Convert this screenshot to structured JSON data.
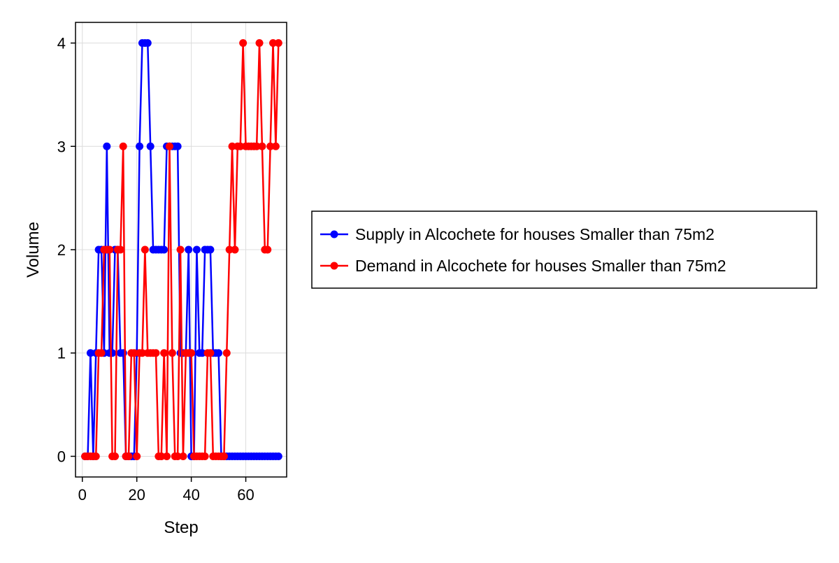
{
  "chart_data": {
    "type": "line",
    "title": "",
    "xlabel": "Step",
    "ylabel": "Volume",
    "xlim": [
      -2.5,
      75
    ],
    "ylim": [
      -0.2,
      4.2
    ],
    "xticks": [
      0,
      20,
      40,
      60
    ],
    "yticks": [
      0,
      1,
      2,
      3,
      4
    ],
    "grid": true,
    "legend_position": "right",
    "x": [
      1,
      2,
      3,
      4,
      5,
      6,
      7,
      8,
      9,
      10,
      11,
      12,
      13,
      14,
      15,
      16,
      17,
      18,
      19,
      20,
      21,
      22,
      23,
      24,
      25,
      26,
      27,
      28,
      29,
      30,
      31,
      32,
      33,
      34,
      35,
      36,
      37,
      38,
      39,
      40,
      41,
      42,
      43,
      44,
      45,
      46,
      47,
      48,
      49,
      50,
      51,
      52,
      53,
      54,
      55,
      56,
      57,
      58,
      59,
      60,
      61,
      62,
      63,
      64,
      65,
      66,
      67,
      68,
      69,
      70,
      71,
      72
    ],
    "series": [
      {
        "name": "Supply in Alcochete for houses Smaller than 75m2",
        "color": "#0000ff",
        "values": [
          0,
          0,
          1,
          0,
          1,
          2,
          2,
          1,
          3,
          1,
          1,
          2,
          2,
          1,
          1,
          0,
          0,
          0,
          0,
          1,
          3,
          4,
          4,
          4,
          3,
          2,
          2,
          2,
          2,
          2,
          3,
          3,
          3,
          3,
          3,
          1,
          1,
          1,
          2,
          0,
          0,
          2,
          1,
          1,
          2,
          2,
          2,
          1,
          1,
          1,
          0,
          0,
          0,
          0,
          0,
          0,
          0,
          0,
          0,
          0,
          0,
          0,
          0,
          0,
          0,
          0,
          0,
          0,
          0,
          0,
          0,
          0
        ]
      },
      {
        "name": "Demand in Alcochete for houses Smaller than 75m2",
        "color": "#ff0000",
        "values": [
          0,
          0,
          0,
          0,
          0,
          1,
          1,
          2,
          2,
          2,
          0,
          0,
          2,
          2,
          3,
          0,
          0,
          1,
          1,
          0,
          1,
          1,
          2,
          1,
          1,
          1,
          1,
          0,
          0,
          1,
          0,
          3,
          1,
          0,
          0,
          2,
          0,
          1,
          1,
          1,
          0,
          0,
          0,
          0,
          0,
          1,
          1,
          0,
          0,
          0,
          0,
          0,
          1,
          2,
          3,
          2,
          3,
          3,
          4,
          3,
          3,
          3,
          3,
          3,
          4,
          3,
          2,
          2,
          3,
          4,
          3,
          4
        ]
      }
    ]
  }
}
